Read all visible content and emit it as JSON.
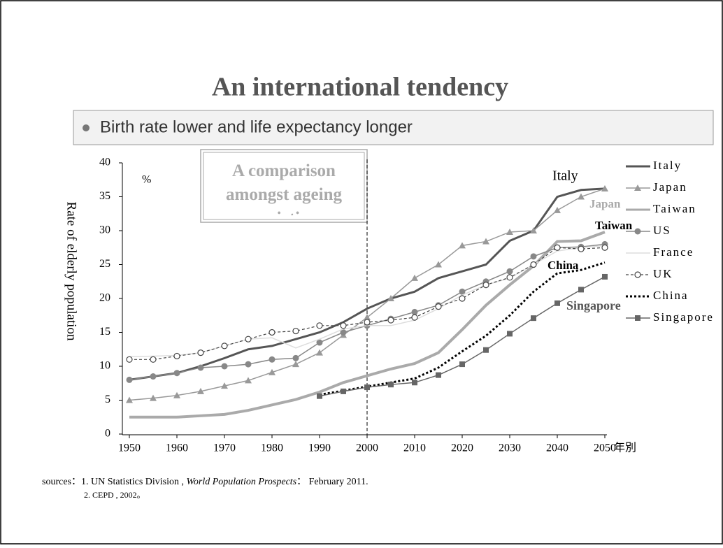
{
  "slide": {
    "title": "An international tendency",
    "bullet": "Birth rate lower and life expectancy longer",
    "sources": [
      "sources：1. UN Statistics Division ,",
      "World Population Prospects",
      "： February 2011.",
      "2. CEPD , 2002。"
    ]
  },
  "chart_data": {
    "type": "line",
    "title": "A comparison amongst ageing societies",
    "y_label": "Rate of elderly population",
    "y_unit": "%",
    "x_unit": "年別",
    "annotations": [
      "Italy",
      "Japan",
      "Taiwan",
      "China",
      "Singapore"
    ],
    "reference_x": 2000,
    "x": [
      1950,
      1955,
      1960,
      1965,
      1970,
      1975,
      1980,
      1985,
      1990,
      1995,
      2000,
      2005,
      2010,
      2015,
      2020,
      2025,
      2030,
      2035,
      2040,
      2045,
      2050
    ],
    "xlim": [
      1950,
      2050
    ],
    "xticks": [
      1950,
      1960,
      1970,
      1980,
      1990,
      2000,
      2010,
      2020,
      2030,
      2040,
      2050
    ],
    "ylim": [
      0,
      40
    ],
    "yticks": [
      0,
      5,
      10,
      15,
      20,
      25,
      30,
      35,
      40
    ],
    "grid": false,
    "legend": "right",
    "series": [
      {
        "name": "Italy",
        "color": "#555555",
        "marker": "none",
        "width": 3,
        "dash": "none",
        "values": [
          8,
          8.5,
          9,
          10,
          11.2,
          12.5,
          13,
          14,
          15,
          16.5,
          18.5,
          20,
          21,
          23,
          24,
          25,
          28.5,
          30,
          35,
          36,
          36.2
        ]
      },
      {
        "name": "Japan",
        "color": "#999999",
        "marker": "triangle",
        "width": 1.5,
        "dash": "none",
        "values": [
          5,
          5.3,
          5.7,
          6.3,
          7.1,
          7.9,
          9.1,
          10.3,
          12,
          14.6,
          17.2,
          20,
          23,
          25,
          27.8,
          28.4,
          29.8,
          30,
          33,
          35,
          36.2
        ]
      },
      {
        "name": "Taiwan",
        "color": "#aaaaaa",
        "marker": "none",
        "width": 4,
        "dash": "none",
        "values": [
          2.5,
          2.5,
          2.5,
          2.7,
          2.9,
          3.5,
          4.3,
          5.1,
          6.2,
          7.6,
          8.6,
          9.6,
          10.4,
          12,
          15.4,
          19,
          22,
          24.8,
          28.4,
          28.5,
          29.8
        ]
      },
      {
        "name": "US",
        "color": "#888888",
        "marker": "circle",
        "width": 1.5,
        "dash": "none",
        "values": [
          8,
          8.5,
          9,
          9.8,
          10,
          10.3,
          11,
          11.2,
          13.5,
          15,
          16,
          17,
          18,
          19,
          21,
          22.5,
          24,
          26.2,
          27.5,
          27.6,
          28
        ]
      },
      {
        "name": "France",
        "color": "#dddddd",
        "marker": "none",
        "width": 1.5,
        "dash": "none",
        "values": [
          11.4,
          11.5,
          11.6,
          12,
          13,
          14,
          14.2,
          12.7,
          14,
          15.5,
          16,
          16,
          16.8,
          18.5,
          20.5,
          22,
          23,
          25,
          27,
          27.5,
          27.8
        ]
      },
      {
        "name": "UK",
        "color": "#444444",
        "marker": "open-circle",
        "width": 1.2,
        "dash": "4 3",
        "values": [
          11,
          11,
          11.5,
          12,
          13,
          14,
          15,
          15.2,
          16,
          16,
          16.5,
          16.8,
          17.2,
          18.8,
          20,
          22,
          23.1,
          25,
          27.5,
          27.3,
          27.5
        ]
      },
      {
        "name": "China",
        "color": "#000000",
        "marker": "none",
        "width": 3,
        "dash": "3 3",
        "values": [
          null,
          null,
          null,
          null,
          null,
          null,
          null,
          null,
          5.8,
          6.4,
          7,
          7.6,
          8.2,
          9.8,
          12.2,
          14.5,
          17.5,
          21,
          23.7,
          24.2,
          25.3
        ]
      },
      {
        "name": "Singapore",
        "color": "#666666",
        "marker": "square",
        "width": 1.5,
        "dash": "none",
        "values": [
          null,
          null,
          null,
          null,
          null,
          null,
          null,
          null,
          5.6,
          6.3,
          6.9,
          7.3,
          7.6,
          8.7,
          10.3,
          12.4,
          14.8,
          17.1,
          19.3,
          21.3,
          23.2
        ]
      }
    ]
  }
}
